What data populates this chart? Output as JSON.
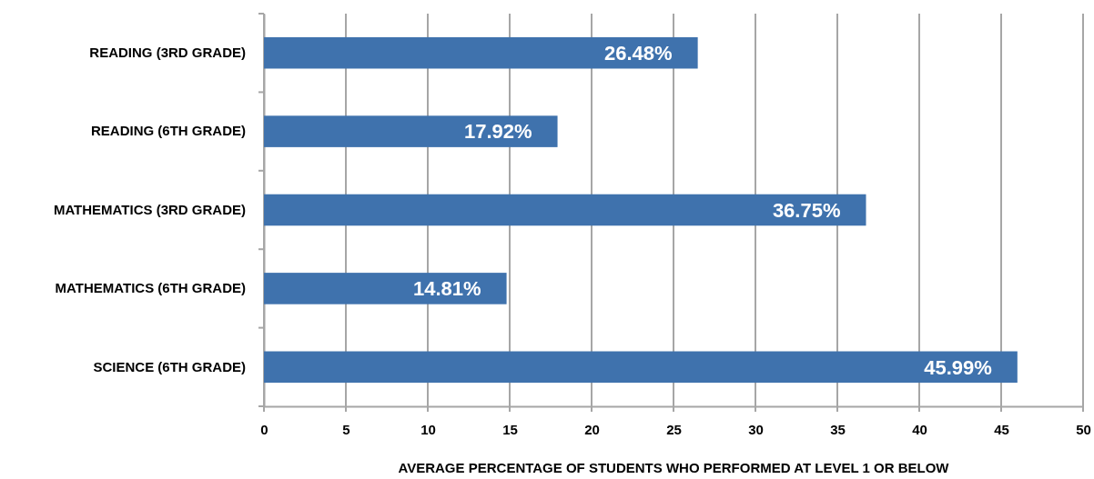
{
  "chart_data": {
    "type": "bar",
    "orientation": "horizontal",
    "categories": [
      "READING (3RD GRADE)",
      "READING (6TH GRADE)",
      "MATHEMATICS (3RD GRADE)",
      "MATHEMATICS (6TH GRADE)",
      "SCIENCE (6TH GRADE)"
    ],
    "values": [
      26.48,
      17.92,
      36.75,
      14.81,
      45.99
    ],
    "value_labels": [
      "26.48%",
      "17.92%",
      "36.75%",
      "14.81%",
      "45.99%"
    ],
    "color": "#3f72ad",
    "xlim": [
      0,
      50
    ],
    "xticks": [
      0,
      5,
      10,
      15,
      20,
      25,
      30,
      35,
      40,
      45,
      50
    ],
    "grid": "x",
    "xlabel": "AVERAGE PERCENTAGE OF STUDENTS WHO PERFORMED AT LEVEL 1 OR BELOW"
  }
}
